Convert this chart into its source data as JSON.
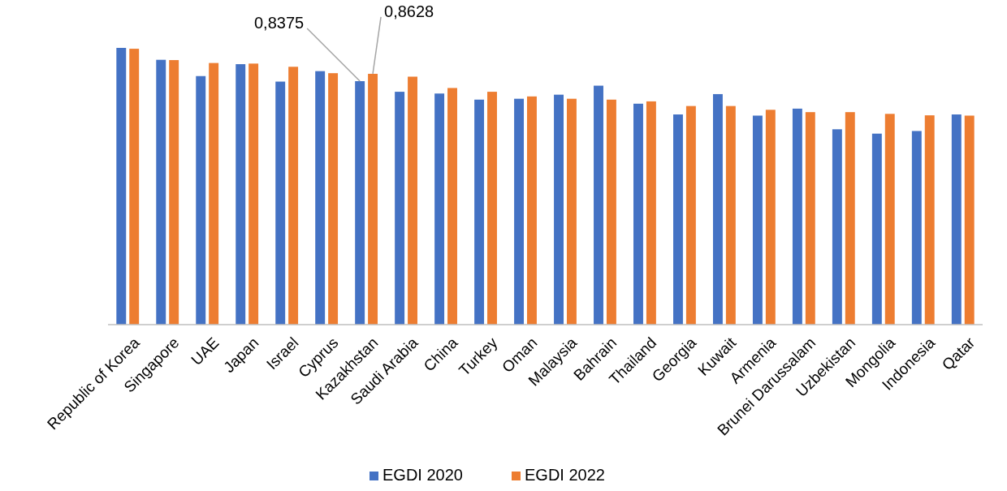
{
  "chart_data": {
    "type": "bar",
    "categories": [
      "Republic of Korea",
      "Singapore",
      "UAE",
      "Japan",
      "Israel",
      "Cyprus",
      "Kazakhstan",
      "Saudi Arabia",
      "China",
      "Turkey",
      "Oman",
      "Malaysia",
      "Bahrain",
      "Thailand",
      "Georgia",
      "Kuwait",
      "Armenia",
      "Brunei Darussalam",
      "Uzbekistan",
      "Mongolia",
      "Indonesia",
      "Qatar"
    ],
    "series": [
      {
        "name": "EGDI 2020",
        "color": "#4472c4",
        "values": [
          0.952,
          0.911,
          0.855,
          0.896,
          0.836,
          0.872,
          0.8375,
          0.801,
          0.795,
          0.774,
          0.777,
          0.791,
          0.822,
          0.76,
          0.723,
          0.793,
          0.719,
          0.743,
          0.672,
          0.657,
          0.666,
          0.723
        ],
        "value_labels": [
          null,
          null,
          null,
          null,
          null,
          null,
          "0,8375",
          null,
          null,
          null,
          null,
          null,
          null,
          null,
          null,
          null,
          null,
          null,
          null,
          null,
          null,
          null
        ]
      },
      {
        "name": "EGDI 2022",
        "color": "#ed7d31",
        "values": [
          0.949,
          0.91,
          0.9,
          0.898,
          0.887,
          0.865,
          0.8628,
          0.853,
          0.814,
          0.801,
          0.785,
          0.777,
          0.774,
          0.768,
          0.752,
          0.752,
          0.739,
          0.731,
          0.731,
          0.725,
          0.72,
          0.719
        ],
        "value_labels": [
          null,
          null,
          null,
          null,
          null,
          null,
          "0,8628",
          null,
          null,
          null,
          null,
          null,
          null,
          null,
          null,
          null,
          null,
          null,
          null,
          null,
          null,
          null
        ]
      }
    ],
    "legend": "bottom",
    "grid": false
  }
}
